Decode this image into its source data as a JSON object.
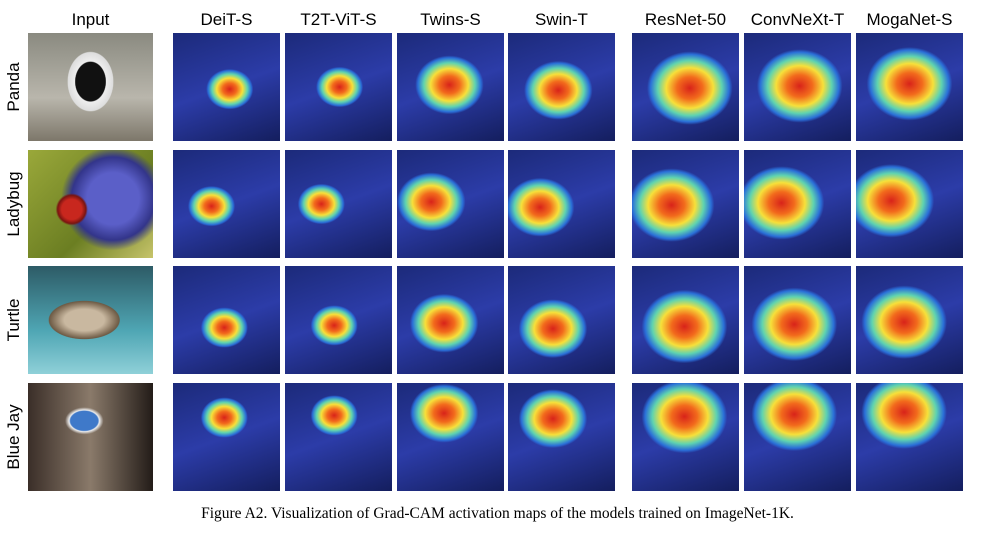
{
  "columns": [
    "Input",
    "DeiT-S",
    "T2T-ViT-S",
    "Twins-S",
    "Swin-T",
    "ResNet-50",
    "ConvNeXt-T",
    "MogaNet-S"
  ],
  "rows": [
    "Panda",
    "Ladybug",
    "Turtle",
    "Blue Jay"
  ],
  "caption": "Figure A2. Visualization of Grad-CAM activation maps of the models trained on ImageNet-1K."
}
